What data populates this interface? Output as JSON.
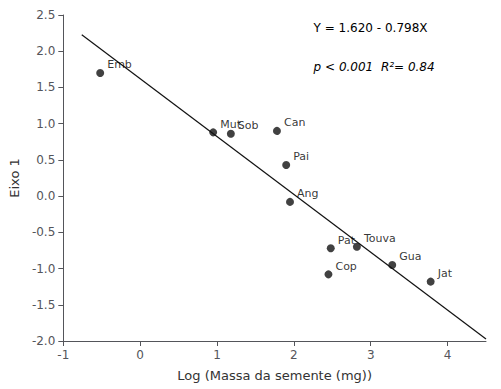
{
  "chart_data": {
    "type": "scatter",
    "x_label": "Log (Massa da semente (mg))",
    "y_label": "Eixo 1",
    "annotations": [
      "Y = 1.620 - 0.798X",
      "p < 0.001  R²= 0.84"
    ],
    "series": [
      {
        "type": "scatter",
        "marker": "circle",
        "color": "#111111",
        "labels": [
          "Emb",
          "Mut",
          "Sob",
          "Can",
          "Pai",
          "Ang",
          "Pat",
          "Touva",
          "Cop",
          "Gua",
          "Jat"
        ],
        "x": [
          -0.52,
          0.95,
          1.18,
          1.78,
          1.9,
          1.95,
          2.48,
          2.82,
          2.45,
          3.28,
          3.78
        ],
        "values": [
          1.7,
          0.88,
          0.86,
          0.9,
          0.43,
          -0.08,
          -0.72,
          -0.7,
          -1.08,
          -0.95,
          -1.18
        ]
      },
      {
        "type": "line",
        "color": "#111111",
        "x": [
          -0.76,
          4.5
        ],
        "values": [
          2.22648,
          -1.971
        ]
      }
    ],
    "xlim": [
      -1,
      4.5
    ],
    "ylim": [
      -2.0,
      2.5
    ],
    "xticks": [
      -1,
      0,
      1,
      2,
      3,
      4
    ],
    "yticks": [
      {
        "value": -2.0,
        "label": "-2.0"
      },
      -1.5,
      {
        "value": -1.0,
        "label": "-1.0"
      },
      -0.5,
      {
        "value": 0.0,
        "label": "0.0"
      },
      0.5,
      {
        "value": 1.0,
        "label": "1.0"
      },
      1.5,
      {
        "value": 2.0,
        "label": "2.0"
      },
      2.5
    ],
    "grid": false
  }
}
